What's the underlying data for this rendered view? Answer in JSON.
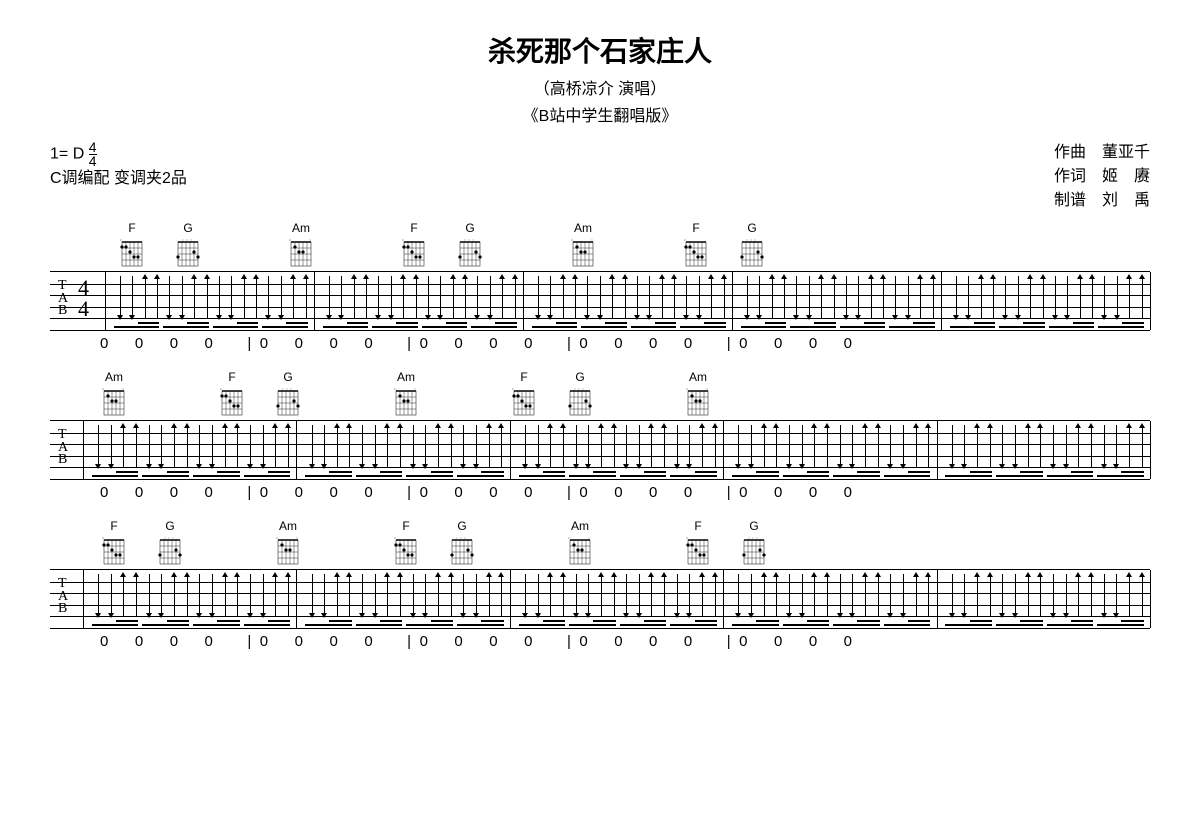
{
  "header": {
    "title": "杀死那个石家庄人",
    "subtitle1": "（高桥凉介  演唱）",
    "subtitle2": "《B站中学生翻唱版》"
  },
  "meta": {
    "key": "1= D",
    "timesig_top": "4",
    "timesig_bottom": "4",
    "arrangement": "C调编配  变调夹2品",
    "composer_label": "作曲",
    "composer": "董亚千",
    "lyricist_label": "作词",
    "lyricist": "姬　赓",
    "transcriber_label": "制谱",
    "transcriber": "刘　禹"
  },
  "chords": {
    "F": "F",
    "G": "G",
    "Am": "Am"
  },
  "systems": [
    {
      "chord_groups": [
        [
          "F",
          "G"
        ],
        [
          "Am"
        ],
        [
          "F",
          "G"
        ],
        [
          "Am"
        ],
        [
          "F",
          "G"
        ]
      ],
      "show_tab_label": true,
      "show_timesig": true,
      "bars": 5
    },
    {
      "chord_groups": [
        [
          "Am"
        ],
        [
          "F",
          "G"
        ],
        [
          "Am"
        ],
        [
          "F",
          "G"
        ],
        [
          "Am"
        ]
      ],
      "show_tab_label": true,
      "show_timesig": false,
      "bars": 5
    },
    {
      "chord_groups": [
        [
          "F",
          "G"
        ],
        [
          "Am"
        ],
        [
          "F",
          "G"
        ],
        [
          "Am"
        ],
        [
          "F",
          "G"
        ]
      ],
      "show_tab_label": true,
      "show_timesig": false,
      "bars": 5
    }
  ],
  "number_notation": {
    "pattern": [
      "0",
      "0",
      "0",
      "0"
    ],
    "separator": "|"
  },
  "colors": {
    "bg": "#ffffff",
    "fg": "#000000"
  }
}
